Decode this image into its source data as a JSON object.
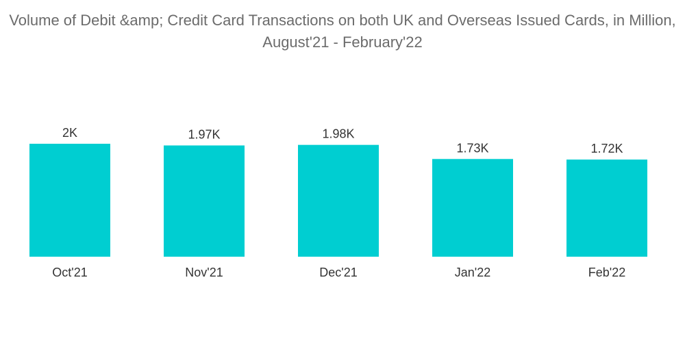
{
  "chart_data": {
    "type": "bar",
    "title": "Volume of Debit &amp; Credit Card Transactions on both UK and Overseas Issued Cards, in Million, August'21 - February'22",
    "categories": [
      "Oct'21",
      "Nov'21",
      "Dec'21",
      "Jan'22",
      "Feb'22"
    ],
    "values": [
      2000,
      1970,
      1980,
      1730,
      1720
    ],
    "value_labels": [
      "2K",
      "1.97K",
      "1.98K",
      "1.73K",
      "1.72K"
    ],
    "xlabel": "",
    "ylabel": "",
    "ylim": [
      0,
      2000
    ],
    "grid": false,
    "legend": "none",
    "colors": {
      "bar": "#00CED1",
      "title": "#6b6b6b",
      "text": "#333333"
    }
  }
}
